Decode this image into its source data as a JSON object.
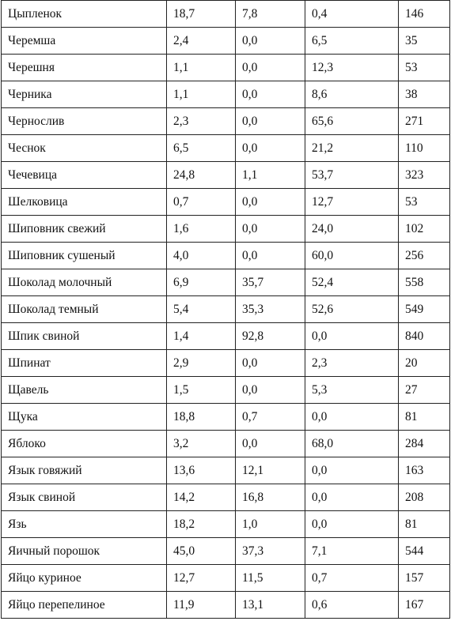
{
  "table": {
    "rows": [
      [
        "Цыпленок",
        "18,7",
        "7,8",
        "0,4",
        "146"
      ],
      [
        "Черемша",
        "2,4",
        "0,0",
        "6,5",
        "35"
      ],
      [
        "Черешня",
        "1,1",
        "0,0",
        "12,3",
        "53"
      ],
      [
        "Черника",
        "1,1",
        "0,0",
        "8,6",
        "38"
      ],
      [
        "Чернослив",
        "2,3",
        "0,0",
        "65,6",
        "271"
      ],
      [
        "Чеснок",
        "6,5",
        "0,0",
        "21,2",
        "110"
      ],
      [
        "Чечевица",
        "24,8",
        "1,1",
        "53,7",
        "323"
      ],
      [
        "Шелковица",
        "0,7",
        "0,0",
        "12,7",
        "53"
      ],
      [
        "Шиповник свежий",
        "1,6",
        "0,0",
        "24,0",
        "102"
      ],
      [
        "Шиповник сушеный",
        "4,0",
        "0,0",
        "60,0",
        "256"
      ],
      [
        "Шоколад молочный",
        "6,9",
        "35,7",
        "52,4",
        "558"
      ],
      [
        "Шоколад темный",
        "5,4",
        "35,3",
        "52,6",
        "549"
      ],
      [
        "Шпик свиной",
        "1,4",
        "92,8",
        "0,0",
        "840"
      ],
      [
        "Шпинат",
        "2,9",
        "0,0",
        "2,3",
        "20"
      ],
      [
        "Щавель",
        "1,5",
        "0,0",
        "5,3",
        "27"
      ],
      [
        "Щука",
        "18,8",
        "0,7",
        "0,0",
        "81"
      ],
      [
        "Яблоко",
        "3,2",
        "0,0",
        "68,0",
        "284"
      ],
      [
        "Язык говяжий",
        "13,6",
        "12,1",
        "0,0",
        "163"
      ],
      [
        "Язык свиной",
        "14,2",
        "16,8",
        "0,0",
        "208"
      ],
      [
        "Язь",
        "18,2",
        "1,0",
        "0,0",
        "81"
      ],
      [
        "Яичный порошок",
        "45,0",
        "37,3",
        "7,1",
        "544"
      ],
      [
        "Яйцо куриное",
        "12,7",
        "11,5",
        "0,7",
        "157"
      ],
      [
        "Яйцо перепелиное",
        "11,9",
        "13,1",
        "0,6",
        "167"
      ]
    ]
  }
}
